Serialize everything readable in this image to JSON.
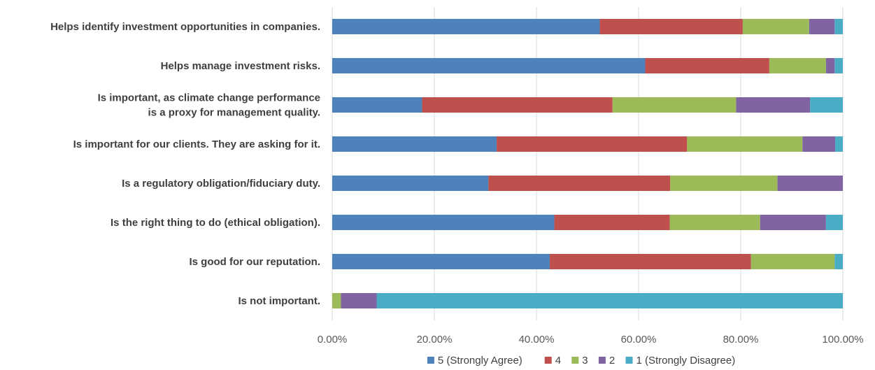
{
  "chart_data": {
    "type": "bar",
    "orientation": "horizontal",
    "stacked": true,
    "categories": [
      [
        "Helps identify investment opportunities in companies."
      ],
      [
        "Helps manage investment risks."
      ],
      [
        "Is important, as climate change performance",
        "is a proxy for management quality."
      ],
      [
        "Is important for our clients. They are asking for it."
      ],
      [
        "Is a regulatory obligation/fiduciary duty."
      ],
      [
        "Is the right thing to do (ethical obligation)."
      ],
      [
        "Is good for our reputation."
      ],
      [
        "Is not important."
      ]
    ],
    "series": [
      {
        "name": "5 (Strongly Agree)",
        "color": "#4f81bd",
        "values": [
          52.4,
          61.3,
          17.6,
          32.2,
          30.6,
          43.5,
          42.6,
          0.0
        ]
      },
      {
        "name": "4",
        "color": "#c0504d",
        "values": [
          28.0,
          24.3,
          37.3,
          37.3,
          35.6,
          22.6,
          39.4,
          0.0
        ]
      },
      {
        "name": "3",
        "color": "#9bbb59",
        "values": [
          13.0,
          11.1,
          24.2,
          22.6,
          21.0,
          17.7,
          16.4,
          1.7
        ]
      },
      {
        "name": "2",
        "color": "#8064a2",
        "values": [
          5.0,
          1.7,
          14.5,
          6.4,
          12.8,
          12.9,
          0.0,
          7.0
        ]
      },
      {
        "name": "1 (Strongly Disagree)",
        "color": "#4bacc6",
        "values": [
          1.6,
          1.6,
          6.4,
          1.5,
          0.0,
          3.3,
          1.6,
          91.3
        ]
      }
    ],
    "xlim": [
      0,
      100
    ],
    "xticks": [
      "0.00%",
      "20.00%",
      "40.00%",
      "60.00%",
      "80.00%",
      "100.00%"
    ],
    "grid": true,
    "legend_position": "bottom"
  }
}
